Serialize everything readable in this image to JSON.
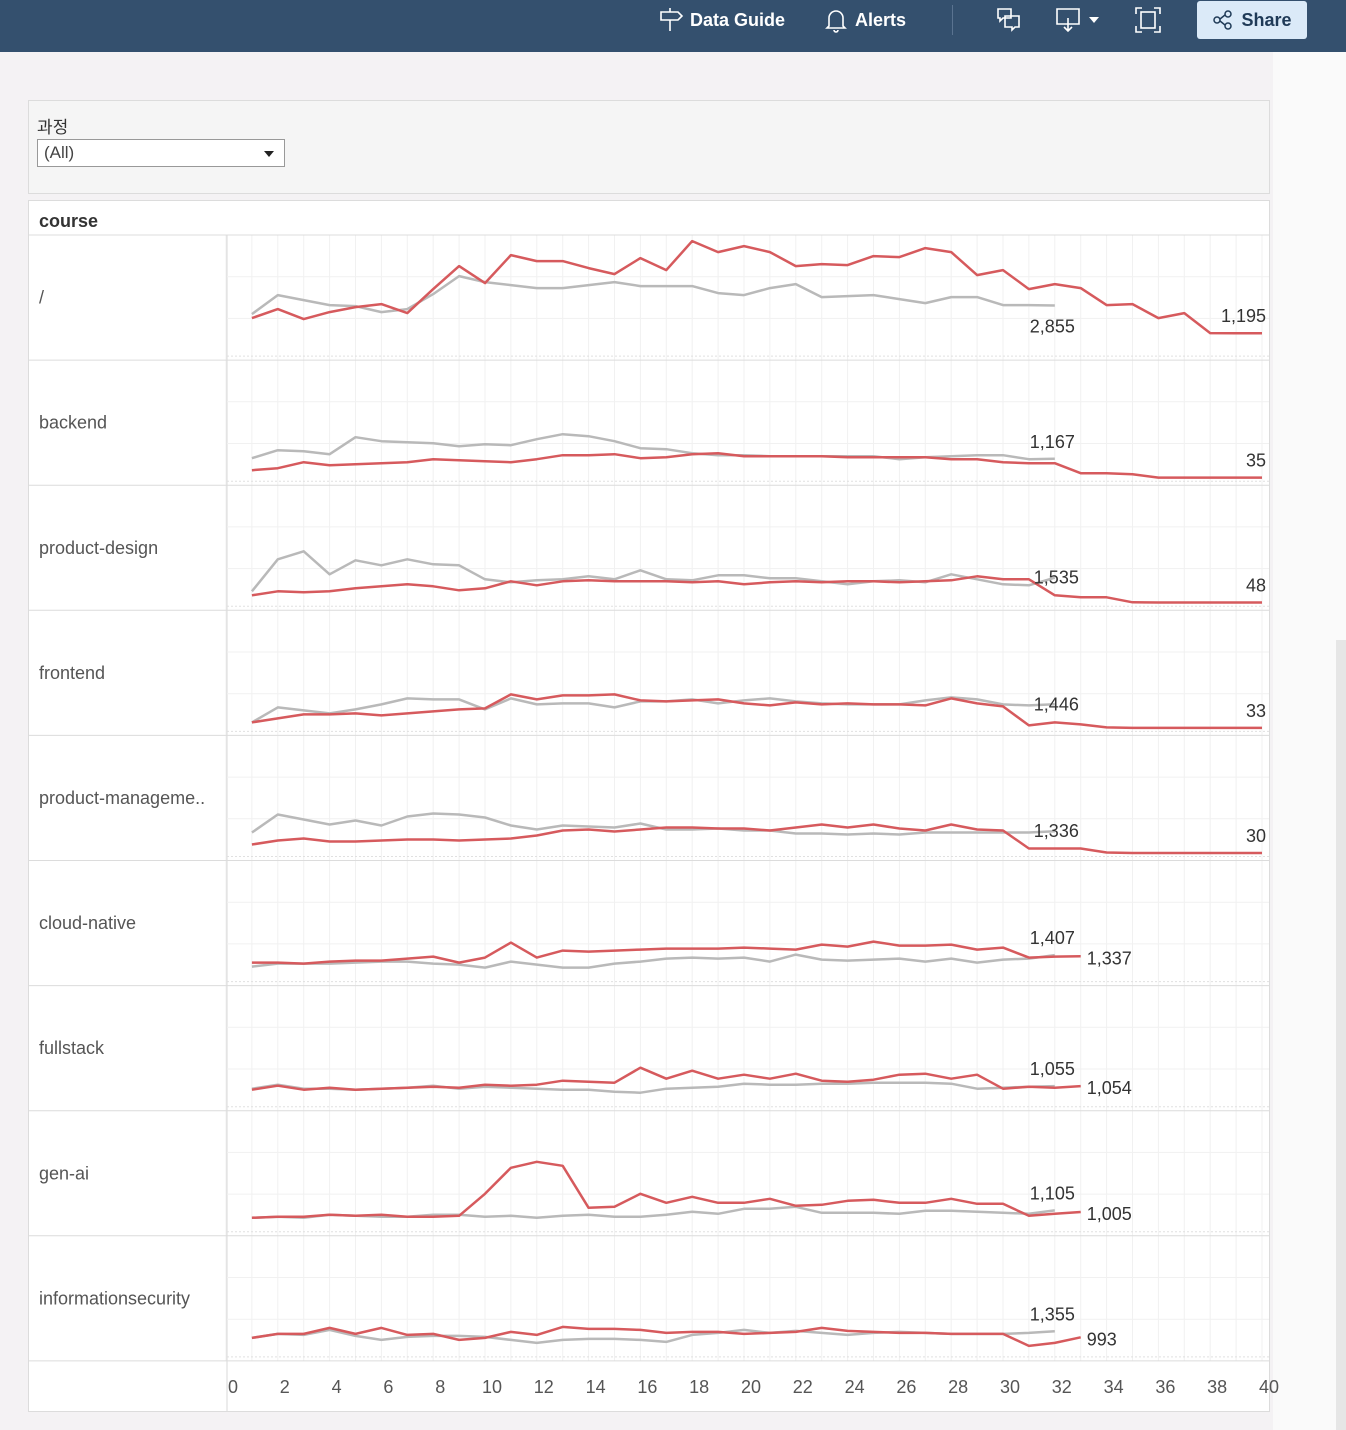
{
  "toolbar": {
    "data_guide": "Data Guide",
    "alerts": "Alerts",
    "share": "Share",
    "icons": [
      "signpost-icon",
      "bell-icon",
      "comments-icon",
      "download-icon",
      "fullscreen-icon",
      "share-icon"
    ]
  },
  "filter": {
    "title": "과정",
    "selected": "(All)"
  },
  "chart_data": {
    "type": "line",
    "header": "course",
    "xlim": [
      0,
      40
    ],
    "x_ticks": [
      "0",
      "2",
      "4",
      "6",
      "8",
      "10",
      "12",
      "14",
      "16",
      "18",
      "20",
      "22",
      "24",
      "26",
      "28",
      "30",
      "32",
      "34",
      "36",
      "38",
      "40"
    ],
    "ylim": [
      0,
      7000
    ],
    "grid": true,
    "colors": {
      "red": "#d65a5d",
      "gray": "#b9b9b9"
    },
    "rows": [
      {
        "label": "/",
        "red": [
          2100,
          2640,
          2040,
          2460,
          2760,
          2940,
          2400,
          3840,
          5220,
          4200,
          5880,
          5520,
          5520,
          5100,
          4740,
          5700,
          4980,
          6720,
          6060,
          6420,
          6060,
          5220,
          5340,
          5280,
          5820,
          5760,
          6300,
          6060,
          4680,
          4980,
          3840,
          4140,
          3900,
          2880,
          2940,
          2100,
          2400,
          1200,
          1195,
          1195
        ],
        "gray": [
          2340,
          3480,
          3180,
          2880,
          2820,
          2460,
          2640,
          3540,
          4620,
          4260,
          4080,
          3900,
          3900,
          4080,
          4260,
          4020,
          4020,
          4020,
          3600,
          3480,
          3900,
          4140,
          3360,
          3420,
          3480,
          3240,
          3000,
          3360,
          3360,
          2880,
          2880,
          2855
        ],
        "red_label": "1,195",
        "gray_label": "2,855"
      },
      {
        "label": "backend",
        "red": [
          480,
          600,
          960,
          780,
          840,
          900,
          960,
          1140,
          1080,
          1020,
          960,
          1140,
          1380,
          1380,
          1440,
          1200,
          1260,
          1440,
          1500,
          1320,
          1320,
          1320,
          1320,
          1260,
          1260,
          1260,
          1260,
          1140,
          1140,
          960,
          900,
          900,
          300,
          300,
          240,
          35,
          35,
          35,
          35,
          35
        ],
        "gray": [
          1200,
          1680,
          1620,
          1440,
          2460,
          2220,
          2160,
          2100,
          1920,
          2040,
          1980,
          2340,
          2640,
          2520,
          2220,
          1800,
          1740,
          1500,
          1380,
          1380,
          1320,
          1320,
          1320,
          1320,
          1320,
          1140,
          1260,
          1320,
          1380,
          1380,
          1140,
          1167
        ],
        "red_label": "35",
        "gray_label": "1,167"
      },
      {
        "label": "product-design",
        "red": [
          480,
          720,
          660,
          720,
          900,
          1020,
          1140,
          1020,
          780,
          900,
          1320,
          1080,
          1320,
          1380,
          1320,
          1320,
          1320,
          1260,
          1320,
          1140,
          1260,
          1320,
          1260,
          1320,
          1320,
          1260,
          1320,
          1380,
          1620,
          1440,
          1440,
          480,
          360,
          360,
          60,
          48,
          48,
          48,
          48,
          48
        ],
        "gray": [
          720,
          2640,
          3120,
          1740,
          2580,
          2280,
          2640,
          2340,
          2280,
          1440,
          1260,
          1380,
          1440,
          1620,
          1440,
          1980,
          1440,
          1380,
          1680,
          1680,
          1500,
          1500,
          1320,
          1140,
          1320,
          1380,
          1260,
          1740,
          1440,
          1140,
          1080,
          1535
        ],
        "red_label": "48",
        "gray_label": "1,535"
      },
      {
        "label": "frontend",
        "red": [
          360,
          600,
          840,
          840,
          900,
          780,
          900,
          1020,
          1140,
          1200,
          2040,
          1740,
          1980,
          1980,
          2040,
          1680,
          1620,
          1680,
          1740,
          1500,
          1380,
          1560,
          1440,
          1500,
          1440,
          1440,
          1380,
          1800,
          1500,
          1320,
          180,
          360,
          240,
          60,
          33,
          33,
          33,
          33,
          33,
          33
        ],
        "gray": [
          360,
          1260,
          1080,
          900,
          1140,
          1440,
          1800,
          1740,
          1740,
          1140,
          1800,
          1440,
          1500,
          1500,
          1260,
          1620,
          1620,
          1740,
          1500,
          1680,
          1800,
          1620,
          1500,
          1440,
          1440,
          1440,
          1680,
          1860,
          1740,
          1440,
          1380,
          1446
        ],
        "red_label": "33",
        "gray_label": "1,446"
      },
      {
        "label": "product-manageme..",
        "red": [
          540,
          780,
          900,
          720,
          720,
          780,
          840,
          840,
          780,
          840,
          900,
          1080,
          1380,
          1440,
          1320,
          1440,
          1560,
          1560,
          1500,
          1500,
          1380,
          1560,
          1740,
          1560,
          1740,
          1500,
          1380,
          1740,
          1440,
          1380,
          300,
          300,
          300,
          60,
          30,
          30,
          30,
          30,
          30,
          30
        ],
        "gray": [
          1260,
          2340,
          2040,
          1740,
          1980,
          1680,
          2220,
          2400,
          2340,
          2160,
          1680,
          1440,
          1680,
          1620,
          1560,
          1800,
          1440,
          1440,
          1500,
          1380,
          1380,
          1200,
          1200,
          1140,
          1200,
          1140,
          1260,
          1260,
          1260,
          1260,
          1260,
          1336
        ],
        "red_label": "30",
        "gray_label": "1,336"
      },
      {
        "label": "cloud-native",
        "red": [
          960,
          960,
          900,
          1020,
          1080,
          1080,
          1200,
          1320,
          960,
          1260,
          2160,
          1260,
          1680,
          1620,
          1680,
          1740,
          1800,
          1800,
          1800,
          1860,
          1800,
          1740,
          2040,
          1920,
          2220,
          1980,
          1980,
          2040,
          1740,
          1860,
          1260,
          1320,
          1337
        ],
        "gray": [
          720,
          900,
          900,
          900,
          960,
          1020,
          1020,
          900,
          840,
          660,
          1020,
          840,
          660,
          660,
          900,
          1020,
          1200,
          1260,
          1200,
          1260,
          1020,
          1440,
          1140,
          1080,
          1140,
          1200,
          1020,
          1200,
          960,
          1140,
          1200,
          1407
        ],
        "red_label": "1,337",
        "gray_label": "1,407"
      },
      {
        "label": "fullstack",
        "red": [
          840,
          1080,
          840,
          960,
          840,
          900,
          960,
          1020,
          960,
          1140,
          1080,
          1140,
          1380,
          1320,
          1260,
          2160,
          1500,
          1980,
          1500,
          1740,
          1500,
          1800,
          1380,
          1320,
          1440,
          1740,
          1800,
          1500,
          1740,
          900,
          1020,
          960,
          1054
        ],
        "gray": [
          900,
          1140,
          900,
          900,
          840,
          900,
          960,
          1080,
          900,
          1020,
          960,
          900,
          840,
          840,
          720,
          660,
          900,
          960,
          1020,
          1200,
          1140,
          1140,
          1200,
          1200,
          1260,
          1260,
          1260,
          1200,
          900,
          960,
          1020,
          1055
        ],
        "red_label": "1,054",
        "gray_label": "1,055"
      },
      {
        "label": "gen-ai",
        "red": [
          660,
          720,
          720,
          840,
          780,
          840,
          720,
          720,
          780,
          2100,
          3660,
          4020,
          3780,
          1260,
          1320,
          2100,
          1560,
          1920,
          1560,
          1560,
          1800,
          1380,
          1440,
          1680,
          1740,
          1560,
          1560,
          1800,
          1500,
          1500,
          780,
          900,
          1005
        ],
        "gray": [
          660,
          720,
          660,
          840,
          780,
          720,
          720,
          840,
          840,
          720,
          780,
          660,
          780,
          840,
          720,
          720,
          840,
          1020,
          900,
          1200,
          1200,
          1320,
          960,
          960,
          960,
          900,
          1080,
          1080,
          1020,
          960,
          900,
          1105
        ],
        "red_label": "1,005",
        "gray_label": "1,105"
      },
      {
        "label": "informationsecurity",
        "red": [
          960,
          1200,
          1200,
          1560,
          1200,
          1560,
          1140,
          1200,
          840,
          960,
          1320,
          1140,
          1620,
          1500,
          1500,
          1440,
          1260,
          1320,
          1320,
          1200,
          1260,
          1320,
          1560,
          1380,
          1320,
          1260,
          1260,
          1200,
          1200,
          1200,
          480,
          660,
          993
        ],
        "gray": [
          960,
          1200,
          1140,
          1440,
          1080,
          840,
          1020,
          1080,
          1080,
          1020,
          840,
          660,
          840,
          900,
          900,
          840,
          720,
          1140,
          1260,
          1440,
          1260,
          1380,
          1260,
          1140,
          1260,
          1320,
          1260,
          1200,
          1200,
          1200,
          1260,
          1355
        ],
        "red_label": "993",
        "gray_label": "1,355"
      }
    ]
  }
}
